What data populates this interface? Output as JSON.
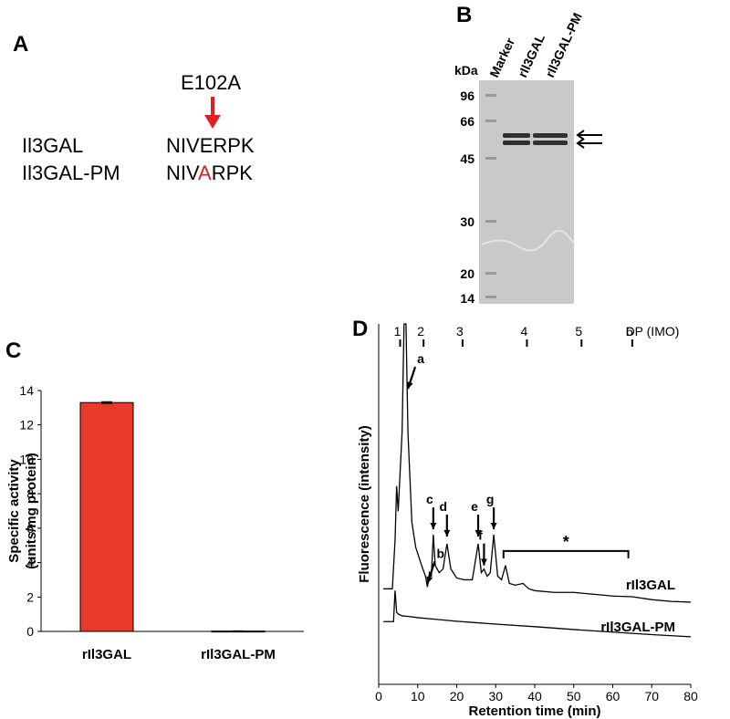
{
  "panel_a": {
    "label": "A",
    "mutation": "E102A",
    "rows": [
      {
        "name": "Il3GAL",
        "seq": [
          "NIV",
          "E",
          "RPK"
        ]
      },
      {
        "name": "Il3GAL-PM",
        "seq": [
          "NIV",
          "A",
          "RPK"
        ]
      }
    ]
  },
  "panel_b": {
    "label": "B",
    "unit": "kDa",
    "lanes": [
      "Marker",
      "rIl3GAL",
      "rIl3GAL-PM"
    ],
    "markers": [
      96,
      66,
      45,
      30,
      20,
      14
    ]
  },
  "chart_data": [
    {
      "type": "bar",
      "panel": "C",
      "ylabel": [
        "Specific activity",
        "(units/mg protein)"
      ],
      "categories": [
        "rIl3GAL",
        "rIl3GAL-PM"
      ],
      "values": [
        13.3,
        0.02
      ],
      "errors": [
        0.05,
        0.01
      ],
      "color": "#e8392b",
      "ylim": [
        0,
        14
      ],
      "yticks": [
        0,
        2,
        4,
        6,
        8,
        10,
        12,
        14
      ]
    },
    {
      "type": "line",
      "panel": "D",
      "xlabel": "Retention time (min)",
      "ylabel": "Fluorescence (intensity)",
      "xlim": [
        0,
        80
      ],
      "xticks": [
        0,
        10,
        20,
        30,
        40,
        50,
        60,
        70,
        80
      ],
      "ylim": [
        0,
        100
      ],
      "top_axis_label": "DP (IMO)",
      "top_ticks": [
        {
          "value": 5.5,
          "label": "1"
        },
        {
          "value": 11.5,
          "label": "2"
        },
        {
          "value": 21.5,
          "label": "3"
        },
        {
          "value": 38,
          "label": "4"
        },
        {
          "value": 52,
          "label": "5"
        },
        {
          "value": 65,
          "label": "6"
        }
      ],
      "series": [
        {
          "name": "rIl3GAL",
          "color": "#000000",
          "x": [
            1.2,
            3.5,
            4.2,
            4.6,
            5,
            6,
            6.5,
            7,
            7.5,
            8.5,
            9.5,
            11,
            12,
            12.5,
            13,
            13.5,
            14,
            14.5,
            15.5,
            16.5,
            17.5,
            18.5,
            20,
            22,
            24,
            25.5,
            26.3,
            27,
            27.8,
            28.6,
            29.5,
            30.5,
            31.5,
            32.5,
            33.5,
            35,
            37,
            38.5,
            40,
            45,
            50,
            55,
            60,
            65,
            70,
            75,
            80
          ],
          "values": [
            26.5,
            26.5,
            40,
            55,
            48,
            70,
            100,
            100,
            70,
            45,
            38,
            33,
            30,
            27,
            31,
            30,
            41.5,
            33,
            31,
            32,
            39,
            32,
            29.5,
            29,
            29,
            39,
            31,
            32,
            30,
            31,
            41.5,
            30,
            29,
            33,
            28,
            27.5,
            28,
            26.5,
            26,
            25.5,
            25.5,
            25,
            24.5,
            24.3,
            23.5,
            23,
            22.8
          ]
        },
        {
          "name": "rIl3GAL-PM",
          "color": "#000000",
          "x": [
            1.2,
            3.8,
            4.2,
            4.6,
            5,
            6,
            8,
            10,
            15,
            20,
            30,
            40,
            50,
            60,
            70,
            80
          ],
          "values": [
            17.4,
            17.4,
            26,
            20,
            19.5,
            19,
            18.8,
            18.5,
            18,
            17.5,
            16.7,
            16,
            15.2,
            14.5,
            13.8,
            13.2
          ]
        }
      ],
      "peaks": [
        {
          "label": "a",
          "x": 7.5,
          "y": 82
        },
        {
          "label": "b",
          "x": 12.5,
          "y": 28
        },
        {
          "label": "c",
          "x": 14,
          "y": 43
        },
        {
          "label": "d",
          "x": 17.5,
          "y": 41
        },
        {
          "label": "e",
          "x": 25.5,
          "y": 41
        },
        {
          "label": "f",
          "x": 27,
          "y": 33
        },
        {
          "label": "g",
          "x": 29.5,
          "y": 43
        }
      ],
      "range_note": {
        "label": "*",
        "x": [
          32,
          64
        ],
        "y": 37
      }
    }
  ]
}
